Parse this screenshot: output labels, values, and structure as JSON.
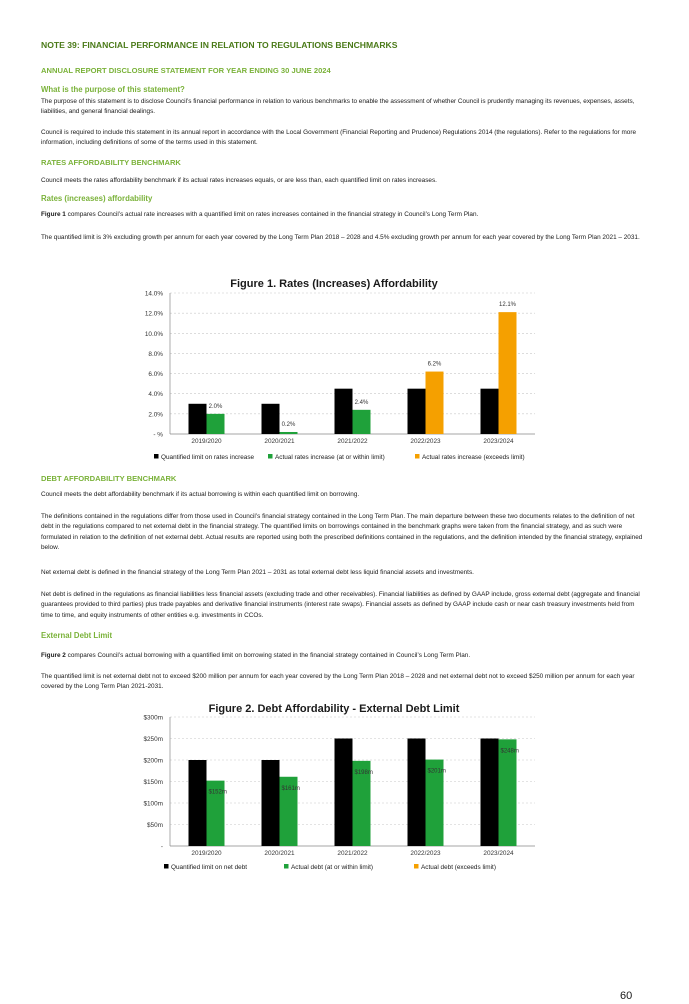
{
  "note_title": "NOTE 39: FINANCIAL PERFORMANCE IN RELATION TO REGULATIONS BENCHMARKS",
  "subtitle": "ANNUAL REPORT DISCLOSURE STATEMENT FOR YEAR ENDING 30 JUNE 2024",
  "purpose": {
    "heading": "What is the purpose of this statement?",
    "p1": "The purpose of this statement is to disclose Council’s financial performance in relation to various benchmarks to enable the assessment of whether Council is prudently managing its revenues, expenses, assets, liabilities, and general financial dealings.",
    "p2": "Council is required to include this statement in its annual report in accordance with the Local Government (Financial Reporting and Prudence) Regulations 2014 (the regulations). Refer to the regulations for more information, including definitions of some of the terms used in this statement."
  },
  "rates": {
    "heading": "RATES AFFORDABILITY BENCHMARK",
    "p1": "Council meets the rates affordability benchmark if its actual rates increases equals, or are less than, each quantified limit on rates increases.",
    "sub_heading": "Rates (increases) affordability",
    "fig_ref": "Figure 1",
    "p2": " compares Council’s actual rate increases with a quantified limit on rates increases contained in the financial strategy in Council’s Long Term Plan.",
    "p3": "The quantified limit is 3% excluding growth per annum for each year covered by the Long Term Plan 2018 – 2028 and 4.5% excluding growth per annum for each year covered by the Long Term Plan 2021 – 2031."
  },
  "debt": {
    "heading": "DEBT AFFORDABILITY BENCHMARK",
    "p1": "Council meets the debt affordability benchmark if its actual borrowing is within each quantified limit on borrowing.",
    "p2": "The definitions contained in the regulations differ from those used in Council’s financial strategy contained in the Long Term Plan. The main departure between these two documents relates to the definition of net debt in the regulations compared to net external debt in the financial strategy. The quantified limits on borrowings contained in the benchmark graphs were taken from the financial strategy, and as such were formulated in relation to the definition of net external debt. Actual results are reported using both the prescribed definitions contained in the regulations, and the definition intended by the financial strategy, explained below.",
    "p3": "Net external debt is defined in the financial strategy of the Long Term Plan 2021 – 2031 as total external debt less liquid financial assets and investments.",
    "p4": "Net debt is defined in the regulations as financial liabilities less financial assets (excluding trade and other receivables). Financial liabilities as defined by GAAP include, gross external debt (aggregate and financial guarantees provided to third parties) plus trade payables and derivative financial instruments (interest rate swaps). Financial assets as defined by GAAP include cash or near cash treasury investments held from time to time, and equity instruments of other entities e.g. investments in CCOs.",
    "sub_heading": "External Debt Limit",
    "fig_ref": "Figure 2",
    "p5": " compares Council’s actual borrowing with a quantified limit on borrowing stated in the financial strategy contained in Council’s Long Term Plan.",
    "p6": "The quantified limit is net external debt not to exceed $200 million per annum for each year covered by the Long Term Plan 2018 – 2028 and net external debt not to exceed $250 million per annum for each year covered by the Long Term Plan 2021-2031."
  },
  "page_number": "60",
  "colors": {
    "limit": "#000000",
    "within": "#1fa13a",
    "exceeds": "#f5a000",
    "grid": "#c8c8c8"
  },
  "chart_data": [
    {
      "type": "bar",
      "title": "Figure 1. Rates (Increases) Affordability",
      "categories": [
        "2019/2020",
        "2020/2021",
        "2021/2022",
        "2022/2023",
        "2023/2024"
      ],
      "series": [
        {
          "name": "Quantified limit on rates increase",
          "values": [
            3.0,
            3.0,
            4.5,
            4.5,
            4.5
          ]
        },
        {
          "name": "Actual rates increase (at or within limit)",
          "values": [
            2.0,
            0.2,
            2.4,
            null,
            null
          ]
        },
        {
          "name": "Actual rates increase (exceeds limit)",
          "values": [
            null,
            null,
            null,
            6.2,
            12.1
          ]
        }
      ],
      "data_labels": [
        "2.0%",
        "0.2%",
        "2.4%",
        "6.2%",
        "12.1%"
      ],
      "yticks": [
        "- %",
        "2.0%",
        "4.0%",
        "6.0%",
        "8.0%",
        "10.0%",
        "12.0%",
        "14.0%"
      ],
      "ylim": [
        0,
        14
      ],
      "grid": true,
      "legend": "bottom"
    },
    {
      "type": "bar",
      "title": "Figure 2. Debt Affordability - External Debt Limit",
      "categories": [
        "2019/2020",
        "2020/2021",
        "2021/2022",
        "2022/2023",
        "2023/2024"
      ],
      "series": [
        {
          "name": "Quantified limit on net debt",
          "values": [
            200,
            200,
            250,
            250,
            250
          ]
        },
        {
          "name": "Actual debt (at or within limit)",
          "values": [
            152,
            161,
            198,
            201,
            248
          ]
        },
        {
          "name": "Actual debt (exceeds limit)",
          "values": [
            null,
            null,
            null,
            null,
            null
          ]
        }
      ],
      "data_labels": [
        "$152m",
        "$161m",
        "$198m",
        "$201m",
        "$248m"
      ],
      "yticks": [
        "-",
        "$50m",
        "$100m",
        "$150m",
        "$200m",
        "$250m",
        "$300m"
      ],
      "ylim": [
        0,
        300
      ],
      "grid": true,
      "legend": "bottom"
    }
  ]
}
